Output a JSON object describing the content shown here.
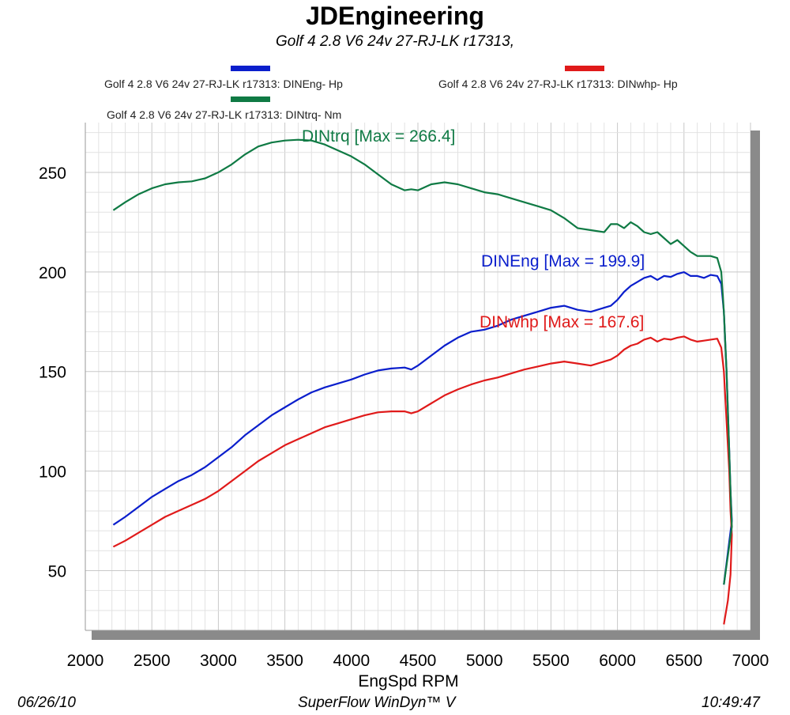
{
  "header": {
    "title": "JDEngineering",
    "subtitle": "Golf 4 2.8 V6 24v 27-RJ-LK r17313,"
  },
  "legend": [
    {
      "label": "Golf 4 2.8 V6 24v 27-RJ-LK r17313: DINEng- Hp",
      "color": "#0a1ecc"
    },
    {
      "label": "Golf 4 2.8 V6 24v 27-RJ-LK r17313: DINwhp-  Hp",
      "color": "#e01a1a"
    },
    {
      "label": "Golf 4 2.8 V6 24v 27-RJ-LK r17313: DINtrq- Nm",
      "color": "#0f7a44"
    }
  ],
  "footer": {
    "date": "06/26/10",
    "software": "SuperFlow WinDyn™ V",
    "time": "10:49:47"
  },
  "chart_data": {
    "type": "line",
    "title": "JDEngineering",
    "subtitle": "Golf 4 2.8 V6 24v 27-RJ-LK r17313,",
    "xlabel": "EngSpd  RPM",
    "ylabel": "",
    "xlim": [
      2000,
      7000
    ],
    "ylim": [
      20,
      275
    ],
    "xticks": [
      2000,
      2500,
      3000,
      3500,
      4000,
      4500,
      5000,
      5500,
      6000,
      6500,
      7000
    ],
    "yticks": [
      50,
      100,
      150,
      200,
      250
    ],
    "grid": true,
    "legend_position": "top",
    "series": [
      {
        "name": "Golf 4 2.8 V6 24v 27-RJ-LK r17313: DINEng- Hp",
        "color": "#0a1ecc",
        "annotation": "DINEng [Max = 199.9]",
        "x": [
          2210,
          2300,
          2400,
          2500,
          2600,
          2700,
          2800,
          2900,
          3000,
          3100,
          3200,
          3300,
          3400,
          3500,
          3600,
          3700,
          3800,
          3900,
          4000,
          4100,
          4200,
          4300,
          4400,
          4450,
          4500,
          4600,
          4700,
          4800,
          4900,
          5000,
          5100,
          5200,
          5300,
          5400,
          5500,
          5600,
          5700,
          5800,
          5900,
          5950,
          6000,
          6050,
          6100,
          6150,
          6200,
          6250,
          6300,
          6350,
          6400,
          6450,
          6500,
          6550,
          6600,
          6650,
          6700,
          6750,
          6780,
          6800,
          6820,
          6840,
          6850,
          6860,
          6800
        ],
        "y": [
          73,
          77,
          82,
          87,
          91,
          95,
          98,
          102,
          107,
          112,
          118,
          123,
          128,
          132,
          136,
          139.5,
          142,
          144,
          146,
          148.5,
          150.5,
          151.5,
          152,
          151,
          153,
          158,
          163,
          167,
          170,
          171,
          173,
          176,
          178,
          180,
          182,
          183,
          181,
          180,
          182,
          183,
          186,
          190,
          193,
          195,
          197,
          198,
          196,
          198,
          197.5,
          199,
          199.9,
          198,
          198,
          197,
          198.5,
          198,
          194,
          180,
          150,
          110,
          90,
          75,
          43
        ]
      },
      {
        "name": "Golf 4 2.8 V6 24v 27-RJ-LK r17313: DINwhp-  Hp",
        "color": "#e01a1a",
        "annotation": "DINwhp [Max = 167.6]",
        "x": [
          2210,
          2300,
          2400,
          2500,
          2600,
          2700,
          2800,
          2900,
          3000,
          3100,
          3200,
          3300,
          3400,
          3500,
          3600,
          3700,
          3800,
          3900,
          4000,
          4100,
          4200,
          4300,
          4400,
          4450,
          4500,
          4600,
          4700,
          4800,
          4900,
          5000,
          5100,
          5200,
          5300,
          5400,
          5500,
          5600,
          5700,
          5800,
          5900,
          5950,
          6000,
          6050,
          6100,
          6150,
          6200,
          6250,
          6300,
          6350,
          6400,
          6450,
          6500,
          6550,
          6600,
          6650,
          6700,
          6750,
          6780,
          6800,
          6820,
          6840,
          6850,
          6860,
          6850,
          6830,
          6800
        ],
        "y": [
          62,
          65,
          69,
          73,
          77,
          80,
          83,
          86,
          90,
          95,
          100,
          105,
          109,
          113,
          116,
          119,
          122,
          124,
          126,
          128,
          129.5,
          130,
          130,
          129,
          130,
          134,
          138,
          141,
          143.5,
          145.5,
          147,
          149,
          151,
          152.5,
          154,
          155,
          154,
          153,
          155,
          156,
          158,
          161,
          163,
          164,
          166,
          167,
          165,
          166.5,
          166,
          167,
          167.6,
          166,
          165,
          165.5,
          166,
          166.5,
          162,
          150,
          125,
          100,
          80,
          68,
          48,
          35,
          23
        ]
      },
      {
        "name": "Golf 4 2.8 V6 24v 27-RJ-LK r17313: DINtrq- Nm",
        "color": "#0f7a44",
        "annotation": "DINtrq [Max = 266.4]",
        "x": [
          2210,
          2300,
          2400,
          2500,
          2600,
          2700,
          2800,
          2900,
          3000,
          3100,
          3200,
          3300,
          3400,
          3500,
          3600,
          3700,
          3800,
          3900,
          4000,
          4100,
          4200,
          4300,
          4400,
          4450,
          4500,
          4600,
          4700,
          4800,
          4900,
          5000,
          5100,
          5200,
          5300,
          5400,
          5500,
          5600,
          5700,
          5800,
          5900,
          5950,
          6000,
          6050,
          6100,
          6150,
          6200,
          6250,
          6300,
          6350,
          6400,
          6450,
          6500,
          6550,
          6600,
          6650,
          6700,
          6750,
          6780,
          6800,
          6820,
          6840,
          6850,
          6860,
          6800
        ],
        "y": [
          231,
          235,
          239,
          242,
          244,
          245,
          245.5,
          247,
          250,
          254,
          259,
          263,
          265,
          266,
          266.4,
          266,
          264,
          261,
          258,
          254,
          249,
          244,
          241,
          241.5,
          241,
          244,
          245,
          244,
          242,
          240,
          239,
          237,
          235,
          233,
          231,
          227,
          222,
          221,
          220,
          224,
          224,
          222,
          225,
          223,
          220,
          219,
          220,
          217,
          214,
          216,
          213,
          210,
          208,
          208,
          208,
          207,
          200,
          180,
          150,
          110,
          90,
          72,
          43
        ]
      }
    ]
  }
}
